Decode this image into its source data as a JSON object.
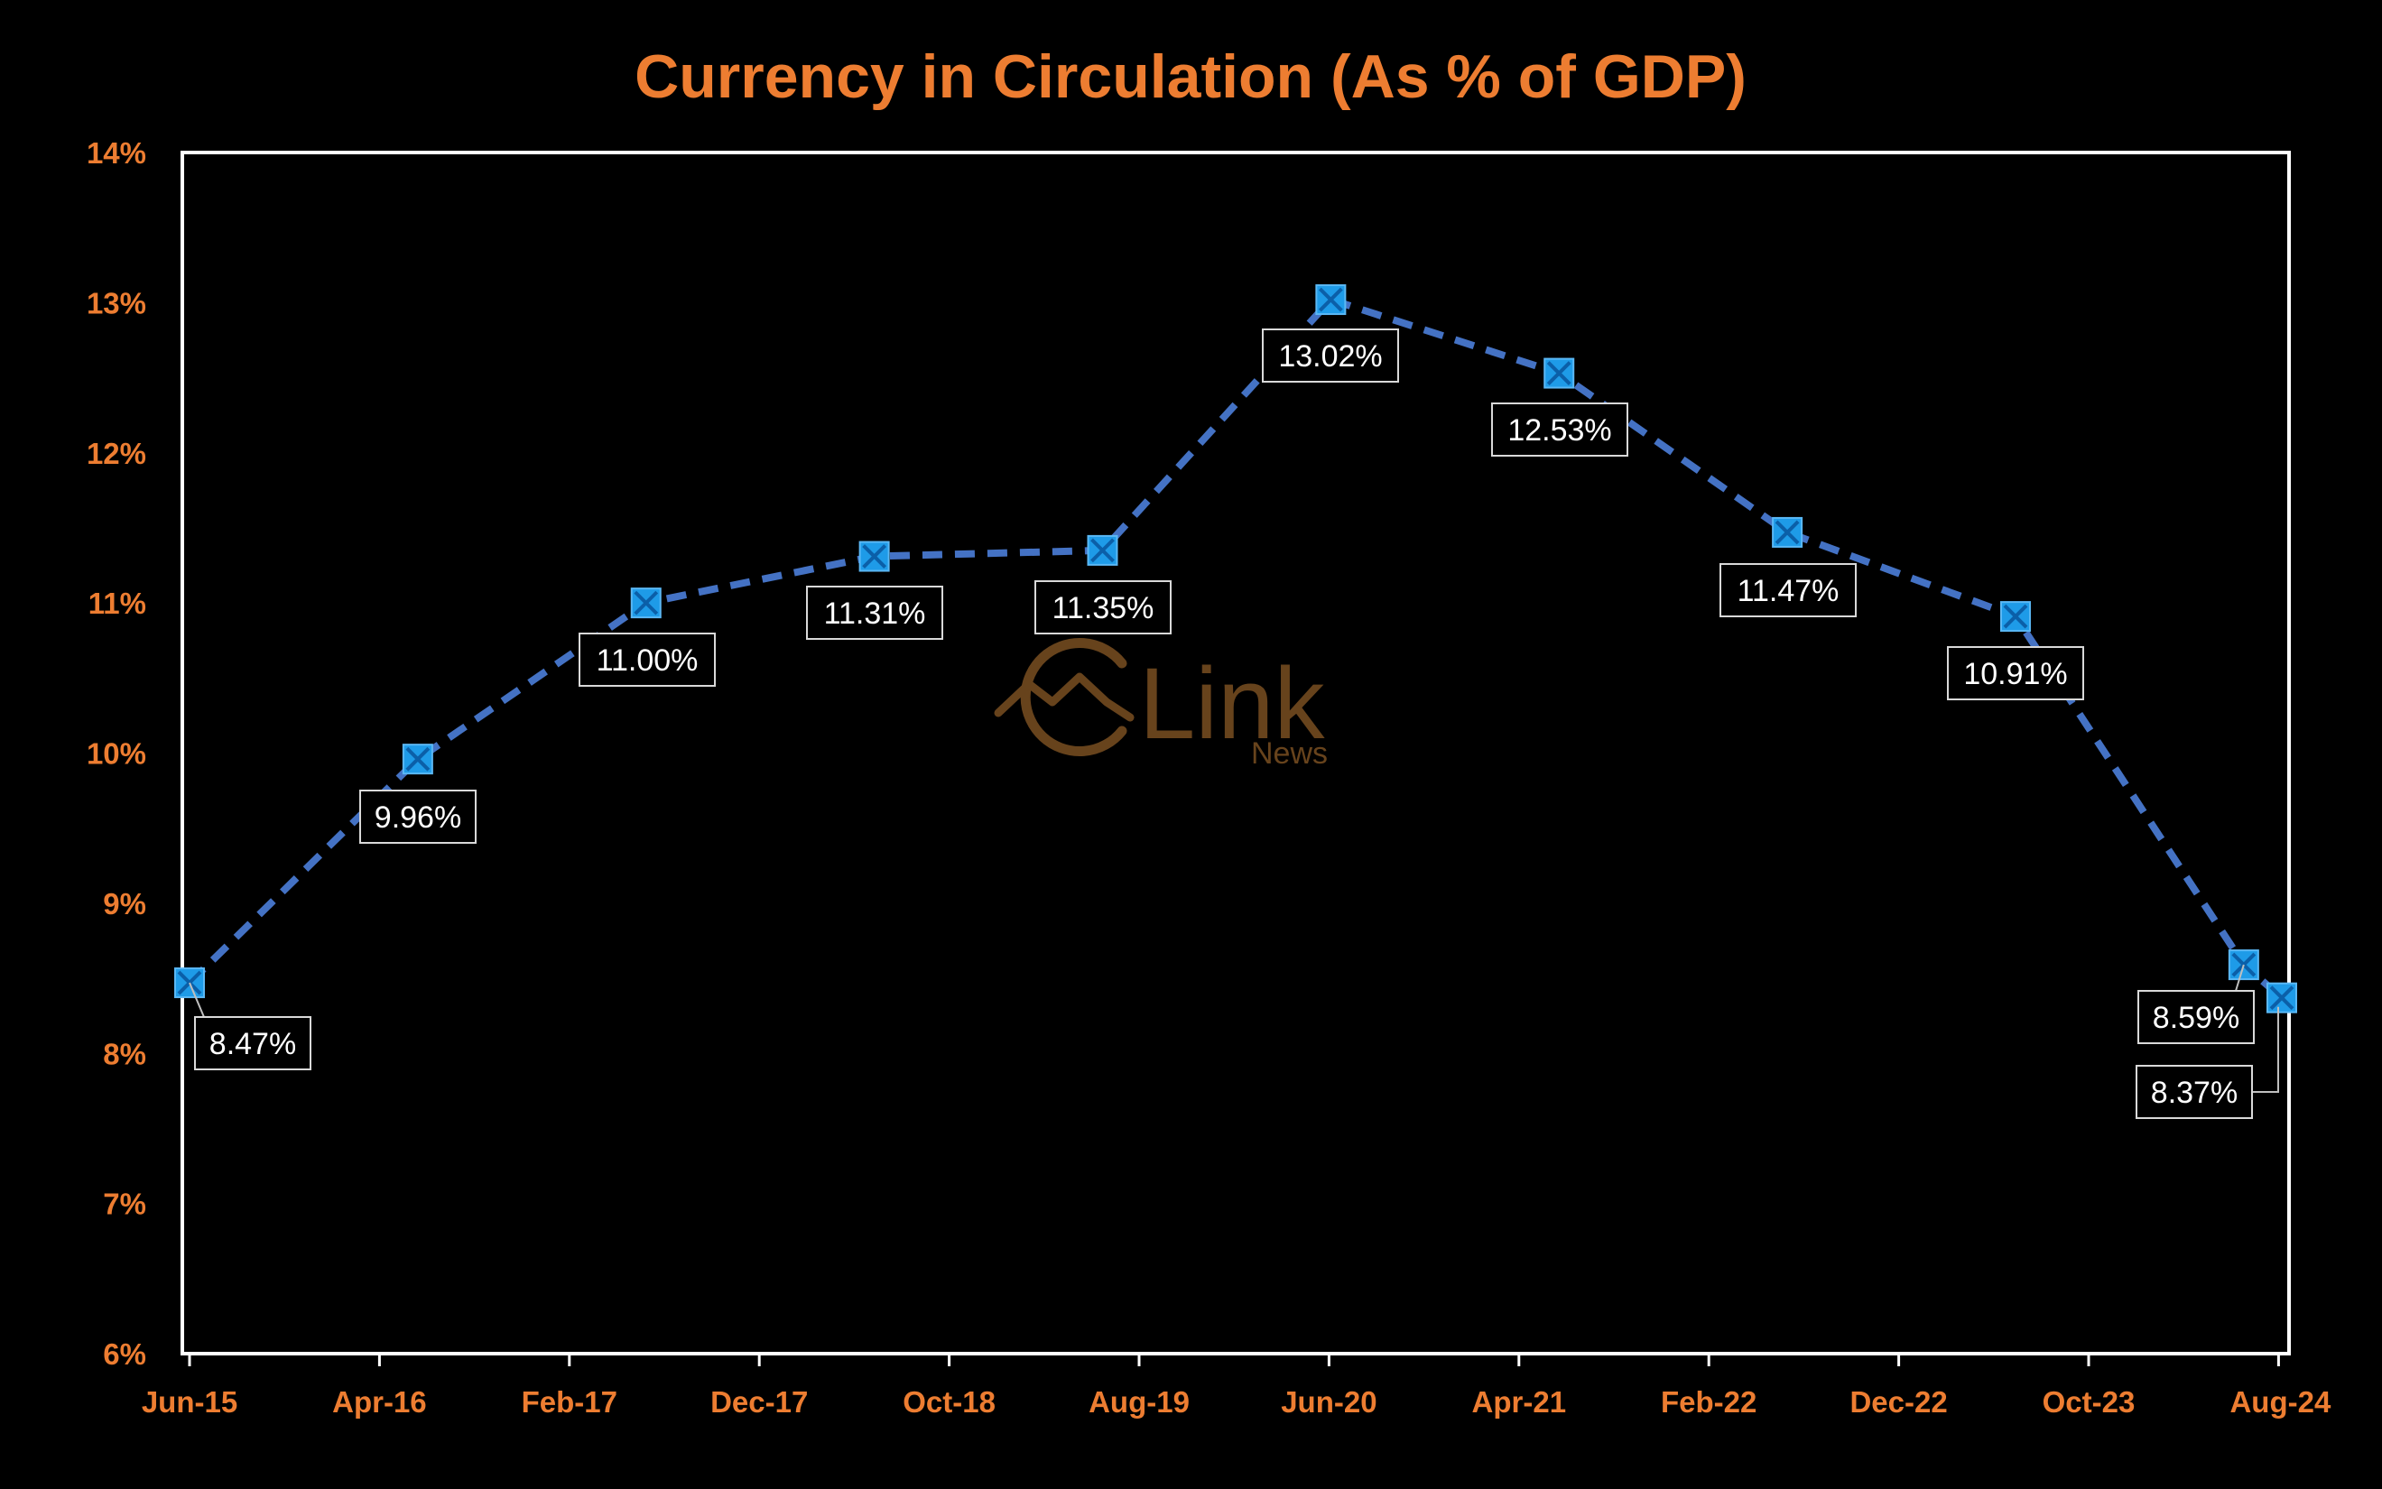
{
  "chart_data": {
    "type": "line",
    "title": "Currency in Circulation (As % of GDP)",
    "xlabel": "",
    "ylabel": "",
    "x_tick_labels": [
      "Jun-15",
      "Apr-16",
      "Feb-17",
      "Dec-17",
      "Oct-18",
      "Aug-19",
      "Jun-20",
      "Apr-21",
      "Feb-22",
      "Dec-22",
      "Oct-23",
      "Aug-24"
    ],
    "x_range": [
      "2015-06",
      "2024-08"
    ],
    "ylim": [
      6,
      14
    ],
    "y_tick_labels": [
      "6%",
      "7%",
      "8%",
      "9%",
      "10%",
      "11%",
      "12%",
      "13%",
      "14%"
    ],
    "grid": false,
    "legend": "none",
    "series": [
      {
        "color": "#4472C4",
        "marker_color": "#1E9BE8",
        "line_style": "dashed",
        "x": [
          "2015-06",
          "2016-06",
          "2017-06",
          "2018-06",
          "2019-06",
          "2020-06",
          "2021-06",
          "2022-06",
          "2023-06",
          "2024-06",
          "2024-08"
        ],
        "values": [
          8.47,
          9.96,
          11.0,
          11.31,
          11.35,
          13.02,
          12.53,
          11.47,
          10.91,
          8.59,
          8.37
        ],
        "labels": [
          "8.47%",
          "9.96%",
          "11.00%",
          "11.31%",
          "11.35%",
          "13.02%",
          "12.53%",
          "11.47%",
          "10.91%",
          "8.59%",
          "8.37%"
        ]
      }
    ]
  },
  "colors": {
    "background": "#000000",
    "accent": "#ED7D31",
    "plot_border": "#FFFFFF",
    "watermark": "#7A4F22"
  },
  "watermark": {
    "brand": "Link",
    "sub": "News"
  }
}
